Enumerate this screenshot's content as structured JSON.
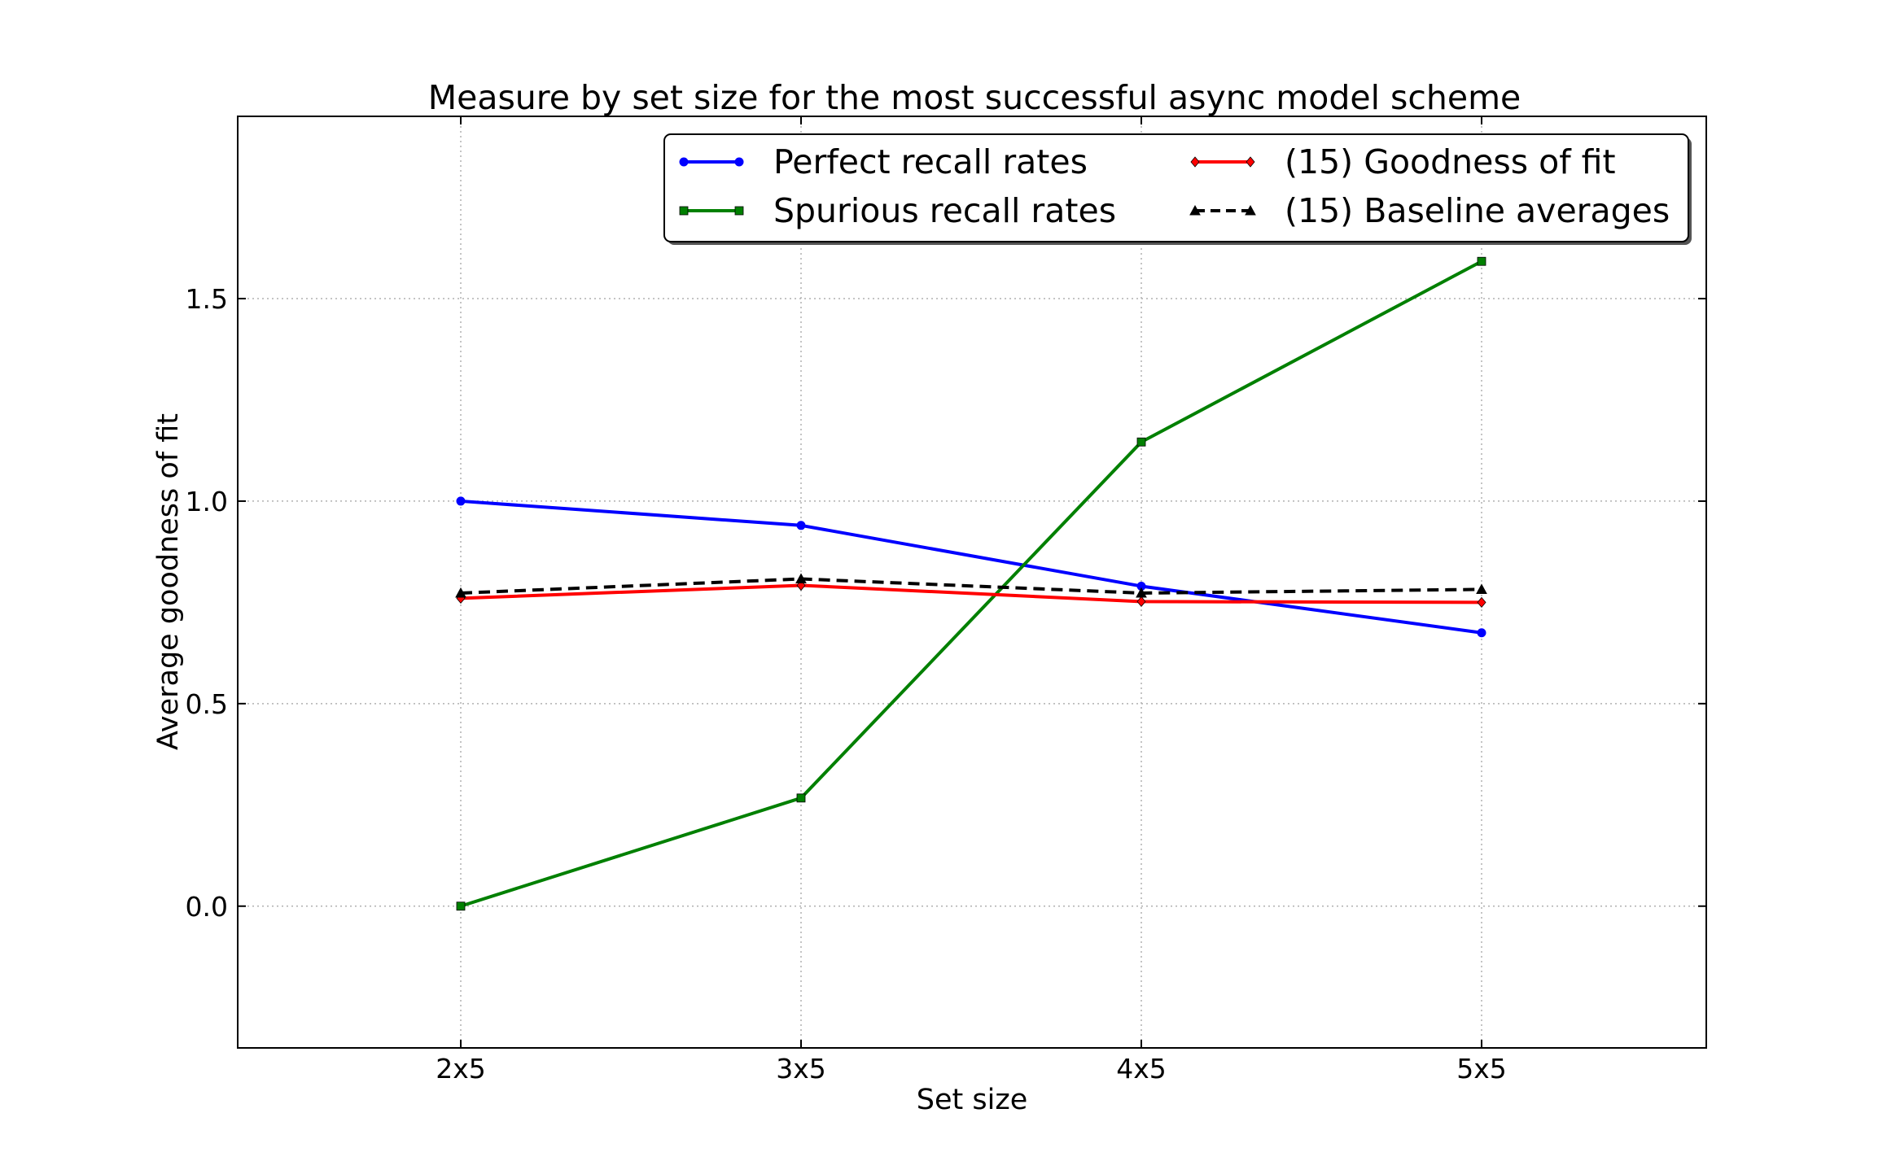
{
  "chart_data": {
    "type": "line",
    "title": "Measure by set size for the most successful async model scheme",
    "xlabel": "Set size",
    "ylabel": "Average goodness of fit",
    "categories": [
      "2x5",
      "3x5",
      "4x5",
      "5x5"
    ],
    "yticks": [
      "0.0",
      "0.5",
      "1.0",
      "1.5"
    ],
    "ylim": [
      -0.35,
      1.95
    ],
    "grid": true,
    "legend_position": "top-right",
    "series": [
      {
        "name": "Perfect recall rates",
        "color": "#0000ff",
        "marker": "circle",
        "dash": "solid",
        "values": [
          1.0,
          0.94,
          0.79,
          0.675
        ]
      },
      {
        "name": "Spurious recall rates",
        "color": "#008000",
        "marker": "square",
        "dash": "solid",
        "values": [
          0.0,
          0.267,
          1.146,
          1.592
        ]
      },
      {
        "name": "(15) Goodness of fit",
        "color": "#ff0000",
        "marker": "diamond",
        "dash": "solid",
        "values": [
          0.76,
          0.792,
          0.752,
          0.75
        ]
      },
      {
        "name": "(15) Baseline averages",
        "color": "#000000",
        "marker": "triangle",
        "dash": "dashed",
        "values": [
          0.773,
          0.808,
          0.773,
          0.782
        ]
      }
    ]
  }
}
